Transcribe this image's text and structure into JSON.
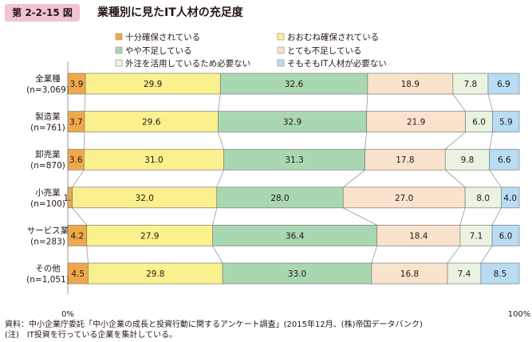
{
  "figure": {
    "number": "第 2-2-15 図",
    "title": "業種別に見たIT人材の充足度"
  },
  "chart_data": {
    "type": "bar",
    "stacked": true,
    "orientation": "horizontal",
    "percent": true,
    "categories": [
      [
        "全業種",
        "(n=3,069)"
      ],
      [
        "製造業",
        "(n=761)"
      ],
      [
        "卸売業",
        "(n=870)"
      ],
      [
        "小売業",
        "(n=100)"
      ],
      [
        "サービス業",
        "(n=283)"
      ],
      [
        "その他",
        "(n=1,051)"
      ]
    ],
    "series": [
      {
        "name": "十分確保されている",
        "color": "#f0a94a",
        "values": [
          3.9,
          3.7,
          3.6,
          1.0,
          4.2,
          4.5
        ]
      },
      {
        "name": "おおむね確保されている",
        "color": "#fbf08e",
        "values": [
          29.9,
          29.6,
          31.0,
          32.0,
          27.9,
          29.8
        ]
      },
      {
        "name": "やや不足している",
        "color": "#a9d7b2",
        "values": [
          32.6,
          32.9,
          31.3,
          28.0,
          36.4,
          33.0
        ]
      },
      {
        "name": "とても不足している",
        "color": "#fae3cc",
        "values": [
          18.9,
          21.9,
          17.8,
          27.0,
          18.4,
          16.8
        ]
      },
      {
        "name": "外注を活用しているため必要ない",
        "color": "#eaf3e1",
        "values": [
          7.8,
          6.0,
          9.8,
          8.0,
          7.1,
          7.4
        ]
      },
      {
        "name": "そもそもIT人材が必要ない",
        "color": "#b7dcf3",
        "values": [
          6.9,
          5.9,
          6.6,
          4.0,
          6.0,
          8.5
        ]
      }
    ],
    "xlim": [
      0,
      100
    ],
    "x_tick_labels": [
      "0%",
      "100%"
    ],
    "legend_position": "top",
    "grid": false
  },
  "notes": [
    "資料：中小企業庁委託「中小企業の成長と投資行動に関するアンケート調査」(2015年12月、(株)帝国データバンク)",
    "(注)　IT投資を行っている企業を集計している。"
  ]
}
